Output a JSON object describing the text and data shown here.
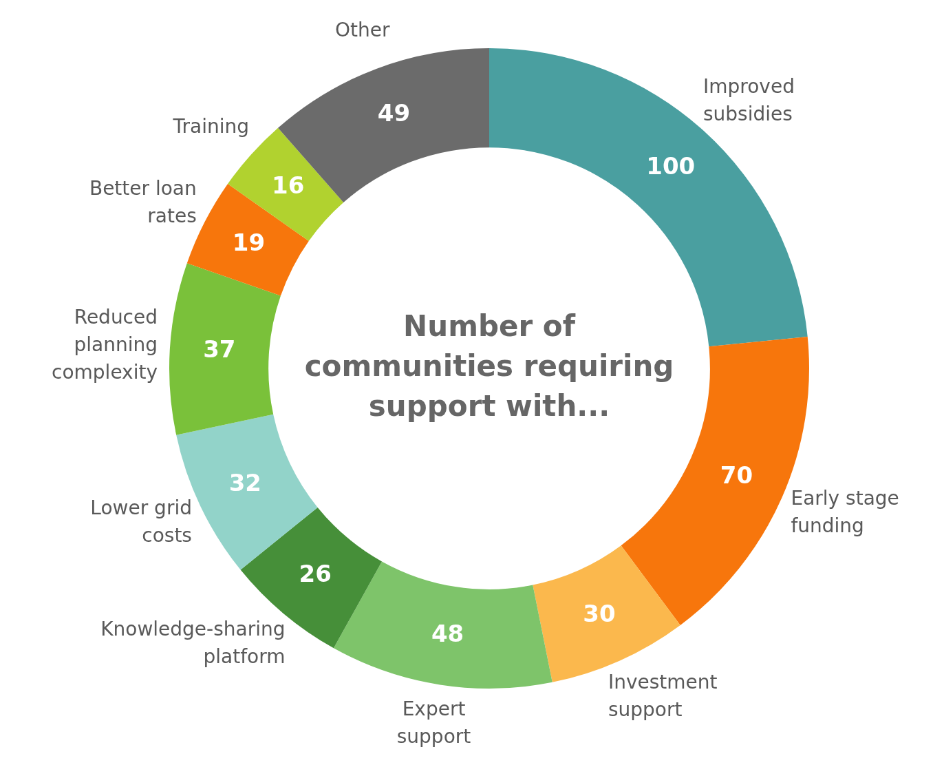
{
  "chart_data": {
    "type": "donut",
    "title": "Number of communities requiring support with...",
    "categories": [
      "Improved subsidies",
      "Early stage funding",
      "Investment support",
      "Expert support",
      "Knowledge-sharing platform",
      "Lower grid costs",
      "Reduced planning complexity",
      "Better loan rates",
      "Training",
      "Other"
    ],
    "values": [
      100,
      70,
      30,
      48,
      26,
      32,
      37,
      19,
      16,
      49
    ],
    "colors": [
      "#4a9fa0",
      "#f7760c",
      "#fbb84d",
      "#7ec46a",
      "#468f39",
      "#92d3c9",
      "#7ac13a",
      "#f7760c",
      "#b1d22f",
      "#6b6b6b"
    ],
    "data_labels": true,
    "legend": false
  }
}
